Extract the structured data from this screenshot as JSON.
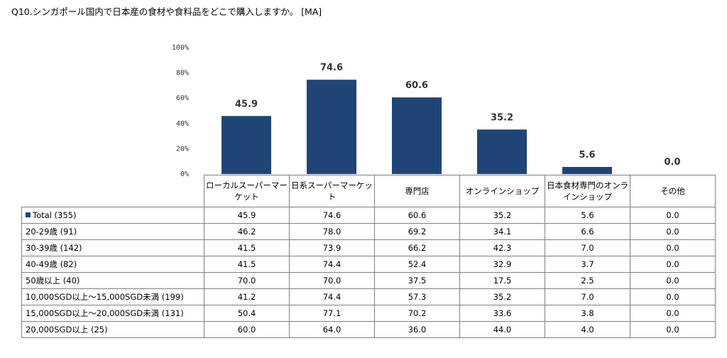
{
  "title": "Q10.シンガポール国内で日本産の食材や食料品をどこで購入しますか。 [MA]",
  "chart_data": {
    "type": "bar",
    "categories": [
      "ローカルスーパーマーケット",
      "日系スーパーマーケット",
      "専門店",
      "オンラインショップ",
      "日本食材専門のオンラインショップ",
      "その他"
    ],
    "values": [
      45.9,
      74.6,
      60.6,
      35.2,
      5.6,
      0.0
    ],
    "value_labels": [
      "45.9",
      "74.6",
      "60.6",
      "35.2",
      "5.6",
      "0.0"
    ],
    "ylim": [
      0,
      100
    ],
    "yticks": [
      {
        "value": 0,
        "label": "0%"
      },
      {
        "value": 20,
        "label": "20%"
      },
      {
        "value": 40,
        "label": "40%"
      },
      {
        "value": 60,
        "label": "60%"
      },
      {
        "value": 80,
        "label": "80%"
      },
      {
        "value": 100,
        "label": "100%"
      }
    ],
    "bar_color": "#1f4476",
    "grid": false
  },
  "table": {
    "headers": [
      [
        "ローカルスーパーマー",
        "ケット"
      ],
      [
        "日系スーパーマーケット"
      ],
      [
        "専門店"
      ],
      [
        "オンラインショップ"
      ],
      [
        "日本食材専門のオンラ",
        "インショップ"
      ],
      [
        "その他"
      ]
    ],
    "rows": [
      {
        "label": "Total (355)",
        "marker": true,
        "values": [
          "45.9",
          "74.6",
          "60.6",
          "35.2",
          "5.6",
          "0.0"
        ]
      },
      {
        "label": "20-29歳 (91)",
        "values": [
          "46.2",
          "78.0",
          "69.2",
          "34.1",
          "6.6",
          "0.0"
        ]
      },
      {
        "label": "30-39歳 (142)",
        "values": [
          "41.5",
          "73.9",
          "66.2",
          "42.3",
          "7.0",
          "0.0"
        ]
      },
      {
        "label": "40-49歳 (82)",
        "values": [
          "41.5",
          "74.4",
          "52.4",
          "32.9",
          "3.7",
          "0.0"
        ]
      },
      {
        "label": "50歳以上 (40)",
        "values": [
          "70.0",
          "70.0",
          "37.5",
          "17.5",
          "2.5",
          "0.0"
        ]
      },
      {
        "label": "10,000SGD以上～15,000SGD未満 (199)",
        "values": [
          "41.2",
          "74.4",
          "57.3",
          "35.2",
          "7.0",
          "0.0"
        ]
      },
      {
        "label": "15,000SGD以上～20,000SGD未満 (131)",
        "values": [
          "50.4",
          "77.1",
          "70.2",
          "33.6",
          "3.8",
          "0.0"
        ]
      },
      {
        "label": "20,000SGD以上 (25)",
        "values": [
          "60.0",
          "64.0",
          "36.0",
          "44.0",
          "4.0",
          "0.0"
        ]
      }
    ]
  }
}
